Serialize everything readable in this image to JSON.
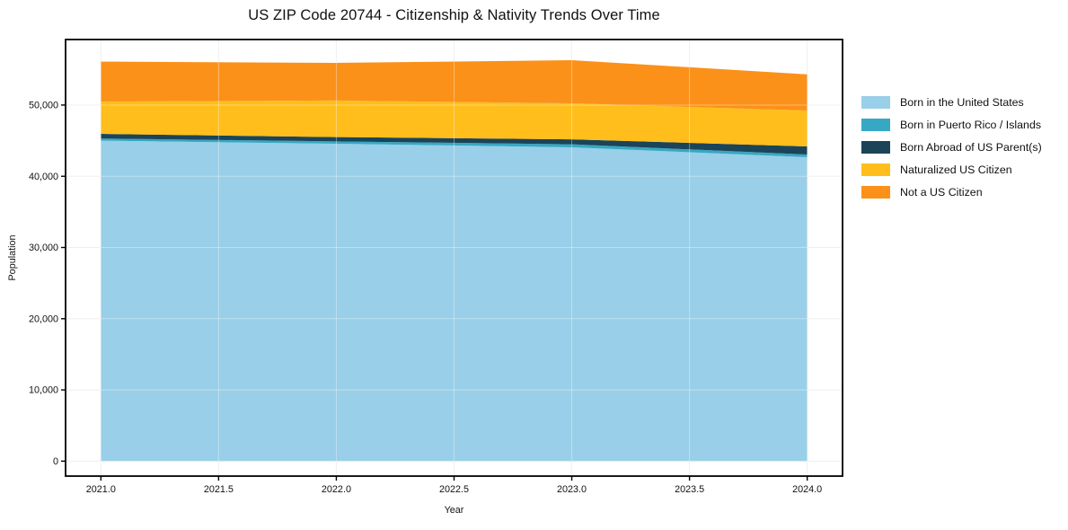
{
  "title": "US ZIP Code 20744 - Citizenship & Nativity Trends Over Time",
  "chart_data": {
    "type": "area",
    "stacked": true,
    "title": "US ZIP Code 20744 - Citizenship & Nativity Trends Over Time",
    "xlabel": "Year",
    "ylabel": "Population",
    "x": [
      2021,
      2022,
      2023,
      2024
    ],
    "series": [
      {
        "name": "Born in the United States",
        "color": "#8ECAE6",
        "values": [
          45000,
          44570,
          44070,
          42680
        ]
      },
      {
        "name": "Born in Puerto Rico / Islands",
        "color": "#219EBC",
        "values": [
          300,
          330,
          420,
          380
        ]
      },
      {
        "name": "Born Abroad of US Parent(s)",
        "color": "#023047",
        "values": [
          650,
          600,
          700,
          1130
        ]
      },
      {
        "name": "Naturalized US Citizen",
        "color": "#FFB703",
        "values": [
          4550,
          5130,
          5060,
          5050
        ]
      },
      {
        "name": "Not a US Citizen",
        "color": "#FB8500",
        "values": [
          5600,
          5290,
          6050,
          5060
        ]
      }
    ],
    "stack_totals": [
      56100,
      55920,
      56300,
      54300
    ],
    "xlim": [
      2020.85,
      2024.15
    ],
    "ylim": [
      -2100,
      59200
    ],
    "xticks": {
      "values": [
        2021.0,
        2021.5,
        2022.0,
        2022.5,
        2023.0,
        2023.5,
        2024.0
      ],
      "labels": [
        "2021.0",
        "2021.5",
        "2022.0",
        "2022.5",
        "2023.0",
        "2023.5",
        "2024.0"
      ]
    },
    "yticks": {
      "values": [
        0,
        10000,
        20000,
        30000,
        40000,
        50000
      ],
      "labels": [
        "0",
        "10,000",
        "20,000",
        "30,000",
        "40,000",
        "50,000"
      ]
    },
    "grid": true,
    "legend_position": "right",
    "fill_opacity": 0.9,
    "grid_color": "#e8e8e8",
    "frame_color": "#000000",
    "text_color": "#111111"
  }
}
